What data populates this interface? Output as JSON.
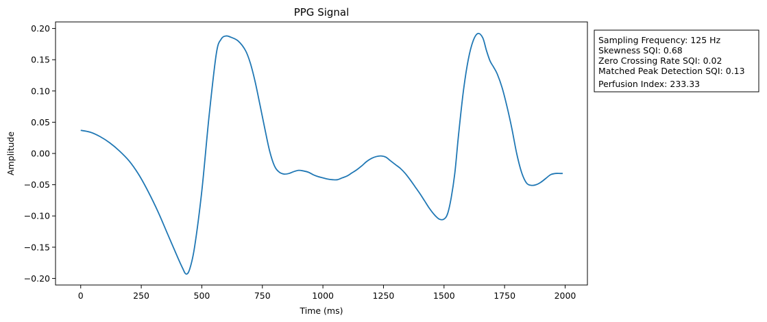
{
  "chart_data": {
    "type": "line",
    "title": "PPG Signal",
    "xlabel": "Time (ms)",
    "ylabel": "Amplitude",
    "xlim": [
      -104,
      2092
    ],
    "ylim": [
      -0.2105,
      0.2105
    ],
    "xticks": [
      0,
      250,
      500,
      750,
      1000,
      1250,
      1500,
      1750,
      2000
    ],
    "yticks": [
      0.2,
      0.15,
      0.1,
      0.05,
      0.0,
      -0.05,
      -0.1,
      -0.15,
      -0.2
    ],
    "xtick_labels": [
      "0",
      "250",
      "500",
      "750",
      "1000",
      "1250",
      "1500",
      "1750",
      "2000"
    ],
    "ytick_labels": [
      "0.20",
      "0.15",
      "0.10",
      "0.05",
      "0.00",
      "−0.05",
      "−0.10",
      "−0.15",
      "−0.20"
    ],
    "grid": false,
    "line_color": "#1f77b4",
    "series": [
      {
        "x": [
          0,
          40,
          80,
          120,
          160,
          200,
          240,
          280,
          320,
          360,
          400,
          420,
          435,
          450,
          470,
          500,
          530,
          560,
          580,
          600,
          620,
          650,
          680,
          700,
          720,
          740,
          760,
          780,
          800,
          820,
          840,
          860,
          880,
          900,
          920,
          940,
          960,
          980,
          1000,
          1020,
          1040,
          1060,
          1080,
          1100,
          1120,
          1140,
          1160,
          1180,
          1200,
          1220,
          1240,
          1260,
          1280,
          1300,
          1320,
          1340,
          1360,
          1380,
          1400,
          1420,
          1440,
          1460,
          1480,
          1500,
          1515,
          1530,
          1545,
          1560,
          1580,
          1600,
          1620,
          1640,
          1660,
          1675,
          1690,
          1705,
          1720,
          1740,
          1760,
          1780,
          1800,
          1820,
          1840,
          1860,
          1880,
          1900,
          1920,
          1940,
          1960,
          1980,
          1990
        ],
        "values": [
          0.037,
          0.034,
          0.027,
          0.017,
          0.004,
          -0.012,
          -0.034,
          -0.062,
          -0.094,
          -0.13,
          -0.166,
          -0.183,
          -0.193,
          -0.185,
          -0.15,
          -0.06,
          0.06,
          0.16,
          0.183,
          0.188,
          0.186,
          0.18,
          0.165,
          0.145,
          0.115,
          0.078,
          0.04,
          0.004,
          -0.02,
          -0.03,
          -0.033,
          -0.032,
          -0.029,
          -0.027,
          -0.028,
          -0.03,
          -0.034,
          -0.037,
          -0.039,
          -0.041,
          -0.042,
          -0.042,
          -0.039,
          -0.036,
          -0.031,
          -0.026,
          -0.02,
          -0.013,
          -0.008,
          -0.005,
          -0.004,
          -0.006,
          -0.012,
          -0.018,
          -0.024,
          -0.032,
          -0.042,
          -0.053,
          -0.064,
          -0.076,
          -0.088,
          -0.098,
          -0.105,
          -0.105,
          -0.096,
          -0.07,
          -0.03,
          0.03,
          0.1,
          0.15,
          0.18,
          0.192,
          0.185,
          0.165,
          0.148,
          0.138,
          0.127,
          0.105,
          0.075,
          0.04,
          0.0,
          -0.03,
          -0.047,
          -0.051,
          -0.05,
          -0.046,
          -0.04,
          -0.034,
          -0.032,
          -0.032,
          -0.032
        ]
      }
    ],
    "annotation": {
      "lines": [
        "Sampling Frequency: 125 Hz",
        "Skewness SQI: 0.68",
        "Zero Crossing Rate SQI: 0.02",
        "Matched Peak Detection SQI: 0.13",
        "Perfusion Index: 233.33"
      ]
    }
  }
}
